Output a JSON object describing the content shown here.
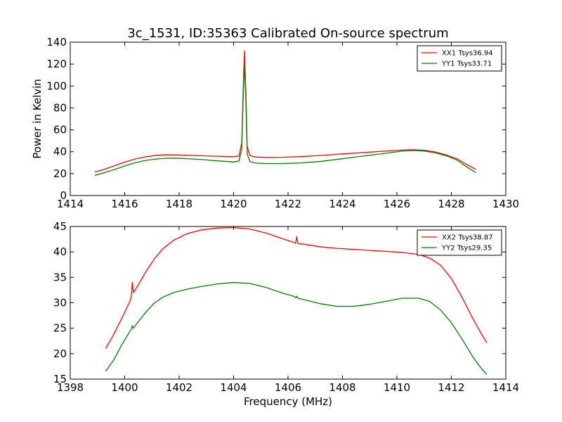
{
  "title": "3c_1531, ID:35363 Calibrated On-source spectrum",
  "chart_data": [
    {
      "type": "line",
      "xlabel": "",
      "ylabel": "Power in Kelvin",
      "xlim": [
        1414,
        1430
      ],
      "ylim": [
        0,
        140
      ],
      "xticks": [
        1414,
        1416,
        1418,
        1420,
        1422,
        1424,
        1426,
        1428,
        1430
      ],
      "yticks": [
        0,
        20,
        40,
        60,
        80,
        100,
        120,
        140
      ],
      "grid": false,
      "legend_position": "top-right",
      "series": [
        {
          "name": "XX1 Tsys36.94",
          "color": "#ff0000",
          "x": [
            1414.9,
            1415.2,
            1415.6,
            1416.0,
            1416.4,
            1416.8,
            1417.2,
            1417.6,
            1418.0,
            1418.5,
            1419.0,
            1419.5,
            1420.0,
            1420.2,
            1420.3,
            1420.35,
            1420.4,
            1420.45,
            1420.5,
            1420.6,
            1420.8,
            1421.2,
            1421.8,
            1422.5,
            1423.2,
            1424.0,
            1424.8,
            1425.6,
            1426.2,
            1426.6,
            1427.0,
            1427.4,
            1427.8,
            1428.2,
            1428.6,
            1428.9
          ],
          "y": [
            21.5,
            23.5,
            27,
            30.5,
            33.5,
            35.5,
            36.8,
            37.2,
            37.0,
            36.6,
            36.2,
            35.8,
            35.5,
            36.0,
            48,
            95,
            132,
            95,
            45,
            36.5,
            35.2,
            34.8,
            34.9,
            35.6,
            36.6,
            38.0,
            39.3,
            40.6,
            41.5,
            41.8,
            41.3,
            39.8,
            37.2,
            33.6,
            27.8,
            24.0
          ]
        },
        {
          "name": "YY1 Tsys33.71",
          "color": "#008000",
          "x": [
            1414.9,
            1415.2,
            1415.6,
            1416.0,
            1416.4,
            1416.8,
            1417.2,
            1417.6,
            1418.0,
            1418.5,
            1419.0,
            1419.5,
            1420.0,
            1420.2,
            1420.3,
            1420.35,
            1420.4,
            1420.45,
            1420.5,
            1420.6,
            1420.8,
            1421.2,
            1421.8,
            1422.5,
            1423.2,
            1424.0,
            1424.8,
            1425.6,
            1426.2,
            1426.6,
            1427.0,
            1427.4,
            1427.8,
            1428.2,
            1428.6,
            1428.9
          ],
          "y": [
            18.5,
            20.5,
            23.5,
            27,
            30,
            32.2,
            33.5,
            34.1,
            34.0,
            33.4,
            32.5,
            31.5,
            30.7,
            31.5,
            42,
            88,
            120,
            88,
            38,
            31,
            29.6,
            29.2,
            29.2,
            29.8,
            31.2,
            33.6,
            36.2,
            38.6,
            40.6,
            41.2,
            40.6,
            39.0,
            36.4,
            32.5,
            25.5,
            21.0
          ]
        }
      ]
    },
    {
      "type": "line",
      "xlabel": "Frequency (MHz)",
      "ylabel": "",
      "xlim": [
        1398,
        1414
      ],
      "ylim": [
        15,
        45
      ],
      "xticks": [
        1398,
        1400,
        1402,
        1404,
        1406,
        1408,
        1410,
        1412,
        1414
      ],
      "yticks": [
        15,
        20,
        25,
        30,
        35,
        40,
        45
      ],
      "grid": false,
      "legend_position": "top-right",
      "series": [
        {
          "name": "XX2 Tsys38.87",
          "color": "#ff0000",
          "x": [
            1399.3,
            1399.6,
            1399.9,
            1400.2,
            1400.25,
            1400.28,
            1400.32,
            1400.5,
            1400.8,
            1401.1,
            1401.4,
            1401.8,
            1402.3,
            1402.8,
            1403.4,
            1404.0,
            1404.6,
            1405.2,
            1405.8,
            1406.2,
            1406.28,
            1406.32,
            1406.36,
            1406.6,
            1407.2,
            1407.8,
            1408.4,
            1409.0,
            1409.6,
            1410.2,
            1410.8,
            1411.2,
            1411.6,
            1412.0,
            1412.4,
            1412.8,
            1413.1,
            1413.3
          ],
          "y": [
            21.0,
            23.8,
            27.0,
            30.4,
            31.5,
            34.0,
            32.0,
            33.5,
            36.3,
            38.7,
            40.6,
            42.3,
            43.6,
            44.3,
            44.7,
            44.8,
            44.5,
            43.7,
            42.6,
            41.9,
            41.7,
            43.0,
            41.7,
            41.5,
            41.0,
            40.7,
            40.5,
            40.3,
            40.1,
            39.9,
            39.5,
            38.8,
            37.4,
            34.8,
            31.0,
            26.8,
            23.9,
            22.2
          ]
        },
        {
          "name": "YY2 Tsys29.35",
          "color": "#008000",
          "x": [
            1399.3,
            1399.6,
            1399.9,
            1400.2,
            1400.25,
            1400.28,
            1400.32,
            1400.5,
            1400.8,
            1401.1,
            1401.4,
            1401.8,
            1402.3,
            1402.8,
            1403.4,
            1404.0,
            1404.6,
            1405.2,
            1405.8,
            1406.2,
            1406.28,
            1406.32,
            1406.36,
            1406.6,
            1407.2,
            1407.8,
            1408.4,
            1409.0,
            1409.6,
            1410.2,
            1410.8,
            1411.2,
            1411.6,
            1412.0,
            1412.4,
            1412.8,
            1413.1,
            1413.3
          ],
          "y": [
            16.5,
            18.8,
            21.8,
            24.5,
            24.8,
            25.5,
            25.0,
            26.3,
            28.3,
            30.0,
            31.1,
            32.0,
            32.7,
            33.2,
            33.7,
            34.0,
            33.8,
            33.0,
            31.9,
            31.3,
            31.0,
            31.3,
            30.9,
            30.6,
            29.8,
            29.3,
            29.3,
            29.7,
            30.3,
            30.9,
            30.9,
            30.3,
            28.6,
            26.1,
            22.8,
            19.3,
            17.1,
            15.9
          ]
        }
      ]
    }
  ]
}
